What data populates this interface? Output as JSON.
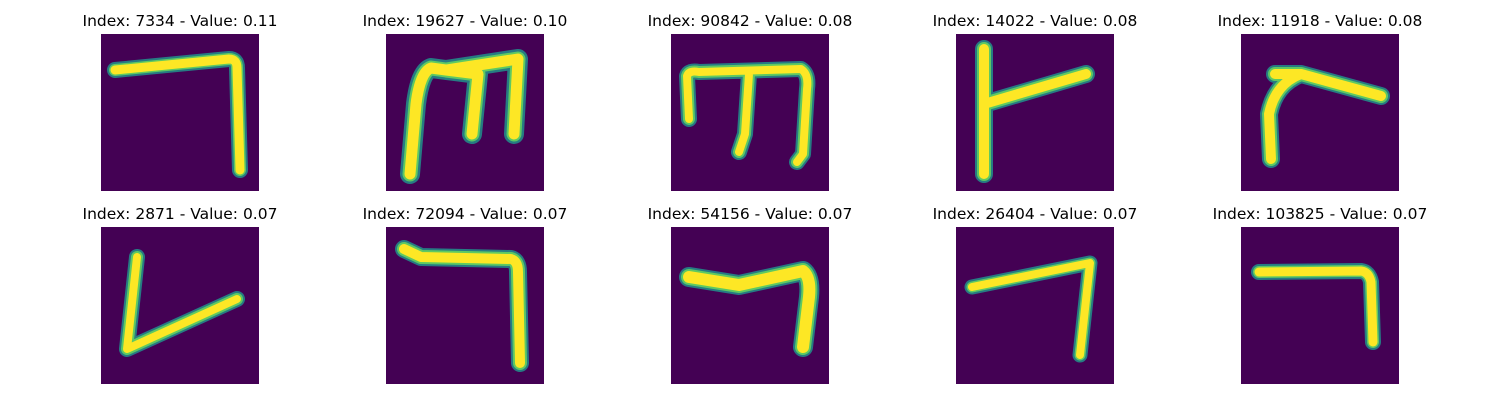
{
  "colors": {
    "background": "#440154",
    "edge": "#21918c",
    "mid": "#5ec962",
    "stroke": "#fde725"
  },
  "panels": [
    {
      "index": "7334",
      "value": "0.11",
      "title": "Index: 7334 - Value: 0.11",
      "glyph": "hook-right"
    },
    {
      "index": "19627",
      "value": "0.10",
      "title": "Index: 19627 - Value: 0.10",
      "glyph": "m-shape"
    },
    {
      "index": "90842",
      "value": "0.08",
      "title": "Index: 90842 - Value: 0.08",
      "glyph": "m-shape"
    },
    {
      "index": "14022",
      "value": "0.08",
      "title": "Index: 14022 - Value: 0.08",
      "glyph": "r-shape"
    },
    {
      "index": "11918",
      "value": "0.08",
      "title": "Index: 11918 - Value: 0.08",
      "glyph": "r-shape"
    },
    {
      "index": "2871",
      "value": "0.07",
      "title": "Index: 2871 - Value: 0.07",
      "glyph": "v-shape"
    },
    {
      "index": "72094",
      "value": "0.07",
      "title": "Index: 72094 - Value: 0.07",
      "glyph": "hook-right"
    },
    {
      "index": "54156",
      "value": "0.07",
      "title": "Index: 54156 - Value: 0.07",
      "glyph": "hook-right"
    },
    {
      "index": "26404",
      "value": "0.07",
      "title": "Index: 26404 - Value: 0.07",
      "glyph": "hook-right"
    },
    {
      "index": "103825",
      "value": "0.07",
      "title": "Index: 103825 - Value: 0.07",
      "glyph": "hook-right"
    }
  ]
}
